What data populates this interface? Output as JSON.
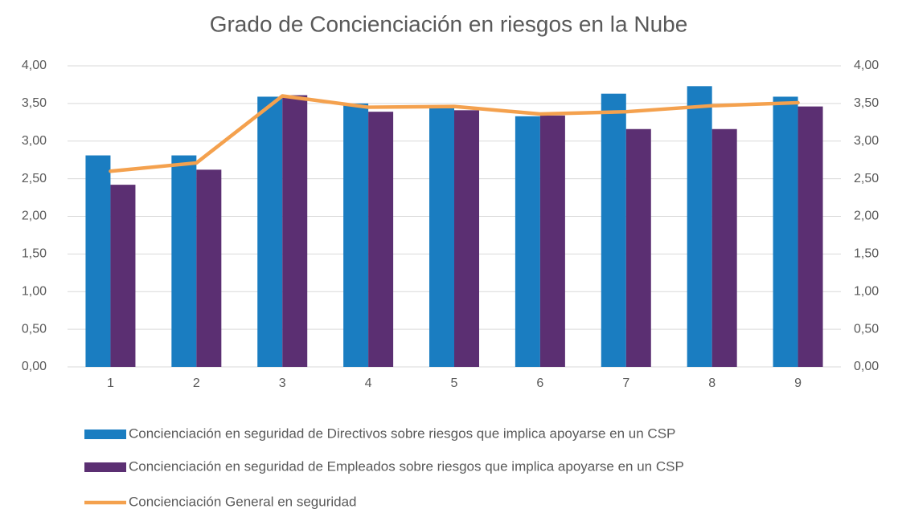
{
  "chart_data": {
    "type": "bar_line",
    "title": "Grado de Concienciación en riesgos en la Nube",
    "categories": [
      "1",
      "2",
      "3",
      "4",
      "5",
      "6",
      "7",
      "8",
      "9"
    ],
    "series": [
      {
        "name": "Concienciación en seguridad de Directivos sobre riesgos que implica apoyarse en un CSP",
        "type": "bar",
        "color": "#1a7dc1",
        "values": [
          2.81,
          2.81,
          3.59,
          3.5,
          3.45,
          3.33,
          3.63,
          3.73,
          3.59
        ]
      },
      {
        "name": "Concienciación en seguridad de Empleados sobre riesgos que implica apoyarse en un CSP",
        "type": "bar",
        "color": "#5b2f72",
        "values": [
          2.42,
          2.62,
          3.61,
          3.39,
          3.41,
          3.34,
          3.16,
          3.16,
          3.46
        ]
      },
      {
        "name": "Concienciación General en seguridad",
        "type": "line",
        "axis": "y2",
        "color": "#f4a14e",
        "values": [
          2.6,
          2.71,
          3.6,
          3.45,
          3.46,
          3.36,
          3.39,
          3.47,
          3.51
        ]
      }
    ],
    "ylim": [
      0,
      4
    ],
    "yticks": [
      {
        "value": 0,
        "label": "0,00"
      },
      {
        "value": 0.5,
        "label": "0,50"
      },
      {
        "value": 1,
        "label": "1,00"
      },
      {
        "value": 1.5,
        "label": "1,50"
      },
      {
        "value": 2,
        "label": "2,00"
      },
      {
        "value": 2.5,
        "label": "2,50"
      },
      {
        "value": 3,
        "label": "3,00"
      },
      {
        "value": 3.5,
        "label": "3,50"
      },
      {
        "value": 4,
        "label": "4,00"
      }
    ],
    "y2lim": [
      0,
      4
    ],
    "y2ticks": [
      {
        "value": 0,
        "label": "0,00"
      },
      {
        "value": 0.5,
        "label": "0,50"
      },
      {
        "value": 1,
        "label": "1,00"
      },
      {
        "value": 1.5,
        "label": "1,50"
      },
      {
        "value": 2,
        "label": "2,00"
      },
      {
        "value": 2.5,
        "label": "2,50"
      },
      {
        "value": 3,
        "label": "3,00"
      },
      {
        "value": 3.5,
        "label": "3,50"
      },
      {
        "value": 4,
        "label": "4,00"
      }
    ],
    "grid": true
  }
}
